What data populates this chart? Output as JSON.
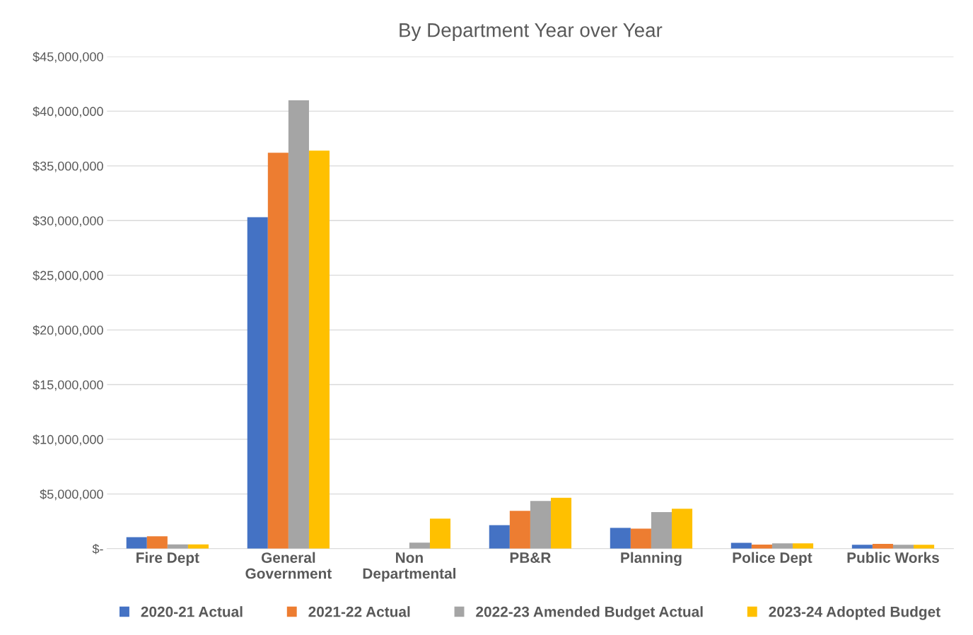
{
  "chart_data": {
    "type": "bar",
    "title": "By Department Year over Year",
    "categories": [
      "Fire Dept",
      "General Government",
      "Non Departmental",
      "PB&R",
      "Planning",
      "Police Dept",
      "Public Works"
    ],
    "series": [
      {
        "name": "2020-21 Actual",
        "color": "#4472c4",
        "values": [
          1050000,
          30300000,
          0,
          2150000,
          1900000,
          540000,
          350000
        ]
      },
      {
        "name": "2021-22 Actual",
        "color": "#ed7d31",
        "values": [
          1130000,
          36200000,
          0,
          3450000,
          1830000,
          370000,
          430000
        ]
      },
      {
        "name": "2022-23 Amended Budget Actual",
        "color": "#a5a5a5",
        "values": [
          390000,
          41000000,
          550000,
          4360000,
          3340000,
          480000,
          350000
        ]
      },
      {
        "name": "2023-24 Adopted Budget",
        "color": "#ffc000",
        "values": [
          390000,
          36400000,
          2740000,
          4650000,
          3650000,
          480000,
          350000
        ]
      }
    ],
    "ylim": [
      0,
      45000000
    ],
    "yticks": [
      {
        "value": 0,
        "label": "$-"
      },
      {
        "value": 5000000,
        "label": "$5,000,000"
      },
      {
        "value": 10000000,
        "label": "$10,000,000"
      },
      {
        "value": 15000000,
        "label": "$15,000,000"
      },
      {
        "value": 20000000,
        "label": "$20,000,000"
      },
      {
        "value": 25000000,
        "label": "$25,000,000"
      },
      {
        "value": 30000000,
        "label": "$30,000,000"
      },
      {
        "value": 35000000,
        "label": "$35,000,000"
      },
      {
        "value": 40000000,
        "label": "$40,000,000"
      },
      {
        "value": 45000000,
        "label": "$45,000,000"
      }
    ],
    "grid": "y",
    "legend": "bottom"
  }
}
